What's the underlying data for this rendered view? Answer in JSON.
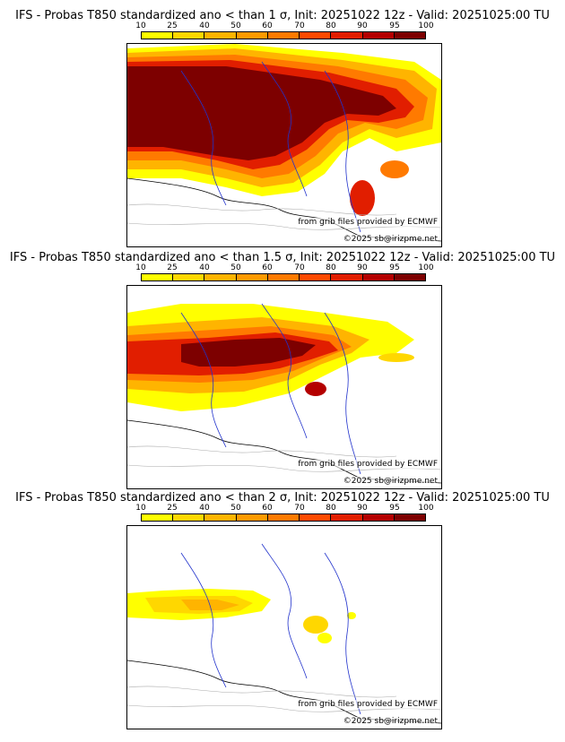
{
  "colorbar": {
    "ticks": [
      "10",
      "25",
      "40",
      "50",
      "60",
      "70",
      "80",
      "90",
      "95",
      "100"
    ],
    "colors": [
      "#ffff00",
      "#ffd700",
      "#ffb400",
      "#ff9a00",
      "#ff7a00",
      "#ff4a00",
      "#e11e00",
      "#b40000",
      "#7d0000"
    ]
  },
  "panels": [
    {
      "title": "IFS - Probas T850  standardized ano < than 1 σ, Init: 20251022 12z - Valid: 20251025:00 TU",
      "credit1": "from grib files provided by ECMWF",
      "credit2": "©2025 sb@irizpme.net"
    },
    {
      "title": "IFS - Probas T850  standardized ano < than 1.5 σ, Init: 20251022 12z - Valid: 20251025:00 TU",
      "credit1": "from grib files provided by ECMWF",
      "credit2": "©2025 sb@irizpme.net"
    },
    {
      "title": "IFS - Probas T850  standardized ano < than 2 σ, Init: 20251022 12z - Valid: 20251025:00 TU",
      "credit1": "from grib files provided by ECMWF",
      "credit2": "©2025 sb@irizpme.net"
    }
  ]
}
